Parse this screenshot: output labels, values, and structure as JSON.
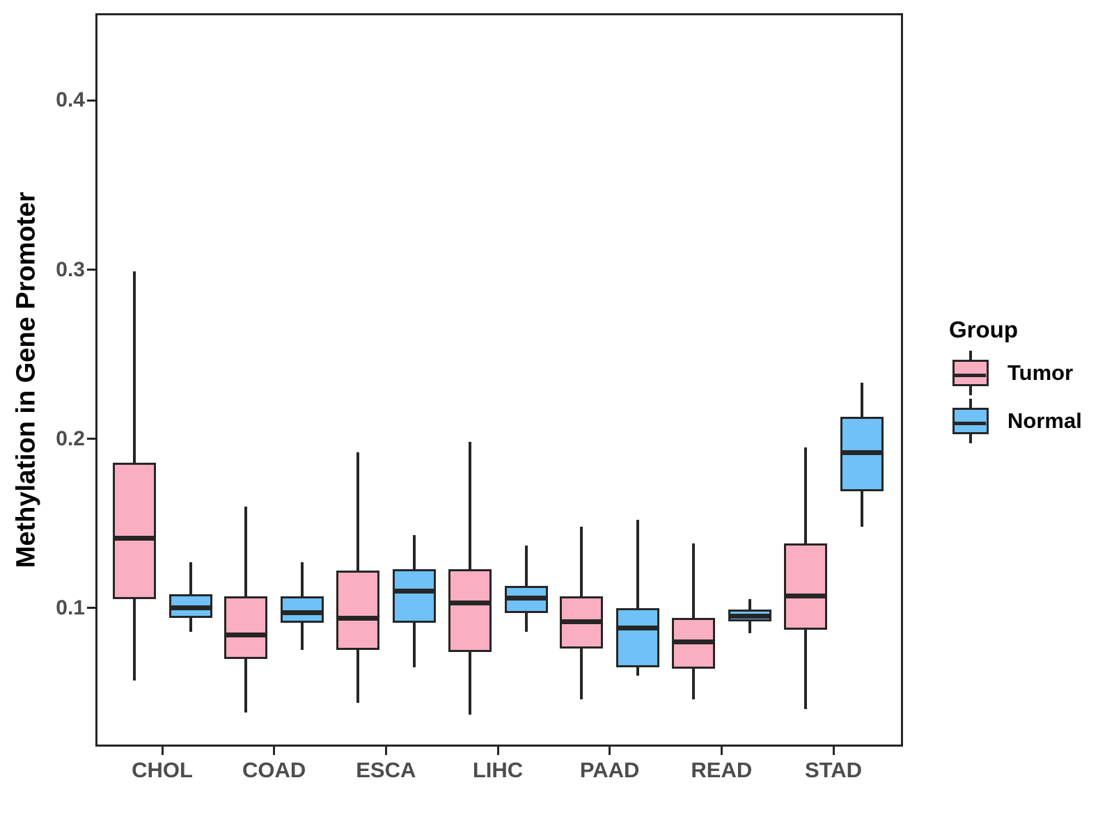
{
  "chart_data": {
    "type": "boxplot",
    "title": "",
    "xlabel": "",
    "ylabel": "Methylation in Gene Promoter",
    "categories": [
      "CHOL",
      "COAD",
      "ESCA",
      "LIHC",
      "PAAD",
      "READ",
      "STAD"
    ],
    "y_ticks": [
      0.4,
      0.3,
      0.2,
      0.1
    ],
    "y_tick_labels": [
      "0.4",
      "0.3",
      "0.2",
      "0.1"
    ],
    "ylim": [
      0.0192,
      0.4504
    ],
    "grid": "off",
    "legend": {
      "title": "Group",
      "position": "right",
      "entries": [
        {
          "label": "Tumor",
          "color": "#FAAEC1"
        },
        {
          "label": "Normal",
          "color": "#6FC1F7"
        }
      ]
    },
    "colors": {
      "tumor_fill": "#FAAEC1",
      "normal_fill": "#6FC1F7",
      "stroke": "#262626",
      "axis_text": "#4D4D4D"
    },
    "series": [
      {
        "name": "Tumor",
        "color": "#FAAEC1",
        "boxes": [
          {
            "category": "CHOL",
            "whisker_low": 0.057,
            "q1": 0.105,
            "median": 0.141,
            "q3": 0.186,
            "whisker_high": 0.299
          },
          {
            "category": "COAD",
            "whisker_low": 0.038,
            "q1": 0.07,
            "median": 0.084,
            "q3": 0.107,
            "whisker_high": 0.16
          },
          {
            "category": "ESCA",
            "whisker_low": 0.044,
            "q1": 0.075,
            "median": 0.094,
            "q3": 0.122,
            "whisker_high": 0.192
          },
          {
            "category": "LIHC",
            "whisker_low": 0.037,
            "q1": 0.074,
            "median": 0.103,
            "q3": 0.123,
            "whisker_high": 0.198
          },
          {
            "category": "PAAD",
            "whisker_low": 0.046,
            "q1": 0.076,
            "median": 0.092,
            "q3": 0.107,
            "whisker_high": 0.148
          },
          {
            "category": "READ",
            "whisker_low": 0.046,
            "q1": 0.064,
            "median": 0.08,
            "q3": 0.094,
            "whisker_high": 0.138
          },
          {
            "category": "STAD",
            "whisker_low": 0.04,
            "q1": 0.087,
            "median": 0.107,
            "q3": 0.138,
            "whisker_high": 0.195
          }
        ]
      },
      {
        "name": "Normal",
        "color": "#6FC1F7",
        "boxes": [
          {
            "category": "CHOL",
            "whisker_low": 0.086,
            "q1": 0.094,
            "median": 0.1,
            "q3": 0.108,
            "whisker_high": 0.127
          },
          {
            "category": "COAD",
            "whisker_low": 0.075,
            "q1": 0.091,
            "median": 0.097,
            "q3": 0.107,
            "whisker_high": 0.127
          },
          {
            "category": "ESCA",
            "whisker_low": 0.065,
            "q1": 0.091,
            "median": 0.11,
            "q3": 0.123,
            "whisker_high": 0.143
          },
          {
            "category": "LIHC",
            "whisker_low": 0.086,
            "q1": 0.097,
            "median": 0.106,
            "q3": 0.113,
            "whisker_high": 0.137
          },
          {
            "category": "PAAD",
            "whisker_low": 0.06,
            "q1": 0.065,
            "median": 0.088,
            "q3": 0.1,
            "whisker_high": 0.152
          },
          {
            "category": "READ",
            "whisker_low": 0.085,
            "q1": 0.092,
            "median": 0.095,
            "q3": 0.099,
            "whisker_high": 0.105
          },
          {
            "category": "STAD",
            "whisker_low": 0.148,
            "q1": 0.169,
            "median": 0.192,
            "q3": 0.213,
            "whisker_high": 0.233
          }
        ]
      }
    ]
  }
}
